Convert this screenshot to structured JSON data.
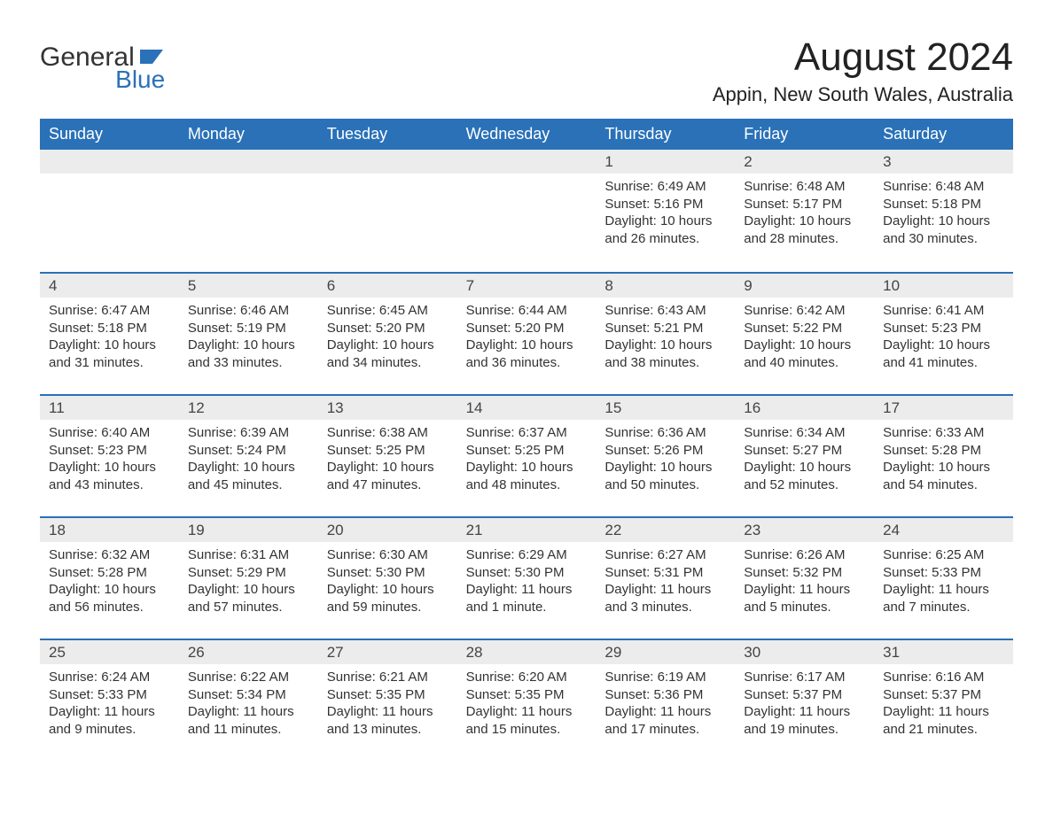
{
  "logo": {
    "general": "General",
    "blue": "Blue",
    "icon_color": "#2a71b8"
  },
  "header": {
    "title": "August 2024",
    "location": "Appin, New South Wales, Australia"
  },
  "calendar": {
    "type": "table",
    "columns": [
      "Sunday",
      "Monday",
      "Tuesday",
      "Wednesday",
      "Thursday",
      "Friday",
      "Saturday"
    ],
    "header_bg": "#2a71b8",
    "header_fg": "#ffffff",
    "row_separator_color": "#2a71b8",
    "daynum_bg": "#ececec",
    "text_color": "#333333",
    "body_bg": "#ffffff",
    "weeks": [
      [
        null,
        null,
        null,
        null,
        {
          "n": "1",
          "sunrise": "Sunrise: 6:49 AM",
          "sunset": "Sunset: 5:16 PM",
          "daylight": "Daylight: 10 hours and 26 minutes."
        },
        {
          "n": "2",
          "sunrise": "Sunrise: 6:48 AM",
          "sunset": "Sunset: 5:17 PM",
          "daylight": "Daylight: 10 hours and 28 minutes."
        },
        {
          "n": "3",
          "sunrise": "Sunrise: 6:48 AM",
          "sunset": "Sunset: 5:18 PM",
          "daylight": "Daylight: 10 hours and 30 minutes."
        }
      ],
      [
        {
          "n": "4",
          "sunrise": "Sunrise: 6:47 AM",
          "sunset": "Sunset: 5:18 PM",
          "daylight": "Daylight: 10 hours and 31 minutes."
        },
        {
          "n": "5",
          "sunrise": "Sunrise: 6:46 AM",
          "sunset": "Sunset: 5:19 PM",
          "daylight": "Daylight: 10 hours and 33 minutes."
        },
        {
          "n": "6",
          "sunrise": "Sunrise: 6:45 AM",
          "sunset": "Sunset: 5:20 PM",
          "daylight": "Daylight: 10 hours and 34 minutes."
        },
        {
          "n": "7",
          "sunrise": "Sunrise: 6:44 AM",
          "sunset": "Sunset: 5:20 PM",
          "daylight": "Daylight: 10 hours and 36 minutes."
        },
        {
          "n": "8",
          "sunrise": "Sunrise: 6:43 AM",
          "sunset": "Sunset: 5:21 PM",
          "daylight": "Daylight: 10 hours and 38 minutes."
        },
        {
          "n": "9",
          "sunrise": "Sunrise: 6:42 AM",
          "sunset": "Sunset: 5:22 PM",
          "daylight": "Daylight: 10 hours and 40 minutes."
        },
        {
          "n": "10",
          "sunrise": "Sunrise: 6:41 AM",
          "sunset": "Sunset: 5:23 PM",
          "daylight": "Daylight: 10 hours and 41 minutes."
        }
      ],
      [
        {
          "n": "11",
          "sunrise": "Sunrise: 6:40 AM",
          "sunset": "Sunset: 5:23 PM",
          "daylight": "Daylight: 10 hours and 43 minutes."
        },
        {
          "n": "12",
          "sunrise": "Sunrise: 6:39 AM",
          "sunset": "Sunset: 5:24 PM",
          "daylight": "Daylight: 10 hours and 45 minutes."
        },
        {
          "n": "13",
          "sunrise": "Sunrise: 6:38 AM",
          "sunset": "Sunset: 5:25 PM",
          "daylight": "Daylight: 10 hours and 47 minutes."
        },
        {
          "n": "14",
          "sunrise": "Sunrise: 6:37 AM",
          "sunset": "Sunset: 5:25 PM",
          "daylight": "Daylight: 10 hours and 48 minutes."
        },
        {
          "n": "15",
          "sunrise": "Sunrise: 6:36 AM",
          "sunset": "Sunset: 5:26 PM",
          "daylight": "Daylight: 10 hours and 50 minutes."
        },
        {
          "n": "16",
          "sunrise": "Sunrise: 6:34 AM",
          "sunset": "Sunset: 5:27 PM",
          "daylight": "Daylight: 10 hours and 52 minutes."
        },
        {
          "n": "17",
          "sunrise": "Sunrise: 6:33 AM",
          "sunset": "Sunset: 5:28 PM",
          "daylight": "Daylight: 10 hours and 54 minutes."
        }
      ],
      [
        {
          "n": "18",
          "sunrise": "Sunrise: 6:32 AM",
          "sunset": "Sunset: 5:28 PM",
          "daylight": "Daylight: 10 hours and 56 minutes."
        },
        {
          "n": "19",
          "sunrise": "Sunrise: 6:31 AM",
          "sunset": "Sunset: 5:29 PM",
          "daylight": "Daylight: 10 hours and 57 minutes."
        },
        {
          "n": "20",
          "sunrise": "Sunrise: 6:30 AM",
          "sunset": "Sunset: 5:30 PM",
          "daylight": "Daylight: 10 hours and 59 minutes."
        },
        {
          "n": "21",
          "sunrise": "Sunrise: 6:29 AM",
          "sunset": "Sunset: 5:30 PM",
          "daylight": "Daylight: 11 hours and 1 minute."
        },
        {
          "n": "22",
          "sunrise": "Sunrise: 6:27 AM",
          "sunset": "Sunset: 5:31 PM",
          "daylight": "Daylight: 11 hours and 3 minutes."
        },
        {
          "n": "23",
          "sunrise": "Sunrise: 6:26 AM",
          "sunset": "Sunset: 5:32 PM",
          "daylight": "Daylight: 11 hours and 5 minutes."
        },
        {
          "n": "24",
          "sunrise": "Sunrise: 6:25 AM",
          "sunset": "Sunset: 5:33 PM",
          "daylight": "Daylight: 11 hours and 7 minutes."
        }
      ],
      [
        {
          "n": "25",
          "sunrise": "Sunrise: 6:24 AM",
          "sunset": "Sunset: 5:33 PM",
          "daylight": "Daylight: 11 hours and 9 minutes."
        },
        {
          "n": "26",
          "sunrise": "Sunrise: 6:22 AM",
          "sunset": "Sunset: 5:34 PM",
          "daylight": "Daylight: 11 hours and 11 minutes."
        },
        {
          "n": "27",
          "sunrise": "Sunrise: 6:21 AM",
          "sunset": "Sunset: 5:35 PM",
          "daylight": "Daylight: 11 hours and 13 minutes."
        },
        {
          "n": "28",
          "sunrise": "Sunrise: 6:20 AM",
          "sunset": "Sunset: 5:35 PM",
          "daylight": "Daylight: 11 hours and 15 minutes."
        },
        {
          "n": "29",
          "sunrise": "Sunrise: 6:19 AM",
          "sunset": "Sunset: 5:36 PM",
          "daylight": "Daylight: 11 hours and 17 minutes."
        },
        {
          "n": "30",
          "sunrise": "Sunrise: 6:17 AM",
          "sunset": "Sunset: 5:37 PM",
          "daylight": "Daylight: 11 hours and 19 minutes."
        },
        {
          "n": "31",
          "sunrise": "Sunrise: 6:16 AM",
          "sunset": "Sunset: 5:37 PM",
          "daylight": "Daylight: 11 hours and 21 minutes."
        }
      ]
    ]
  }
}
